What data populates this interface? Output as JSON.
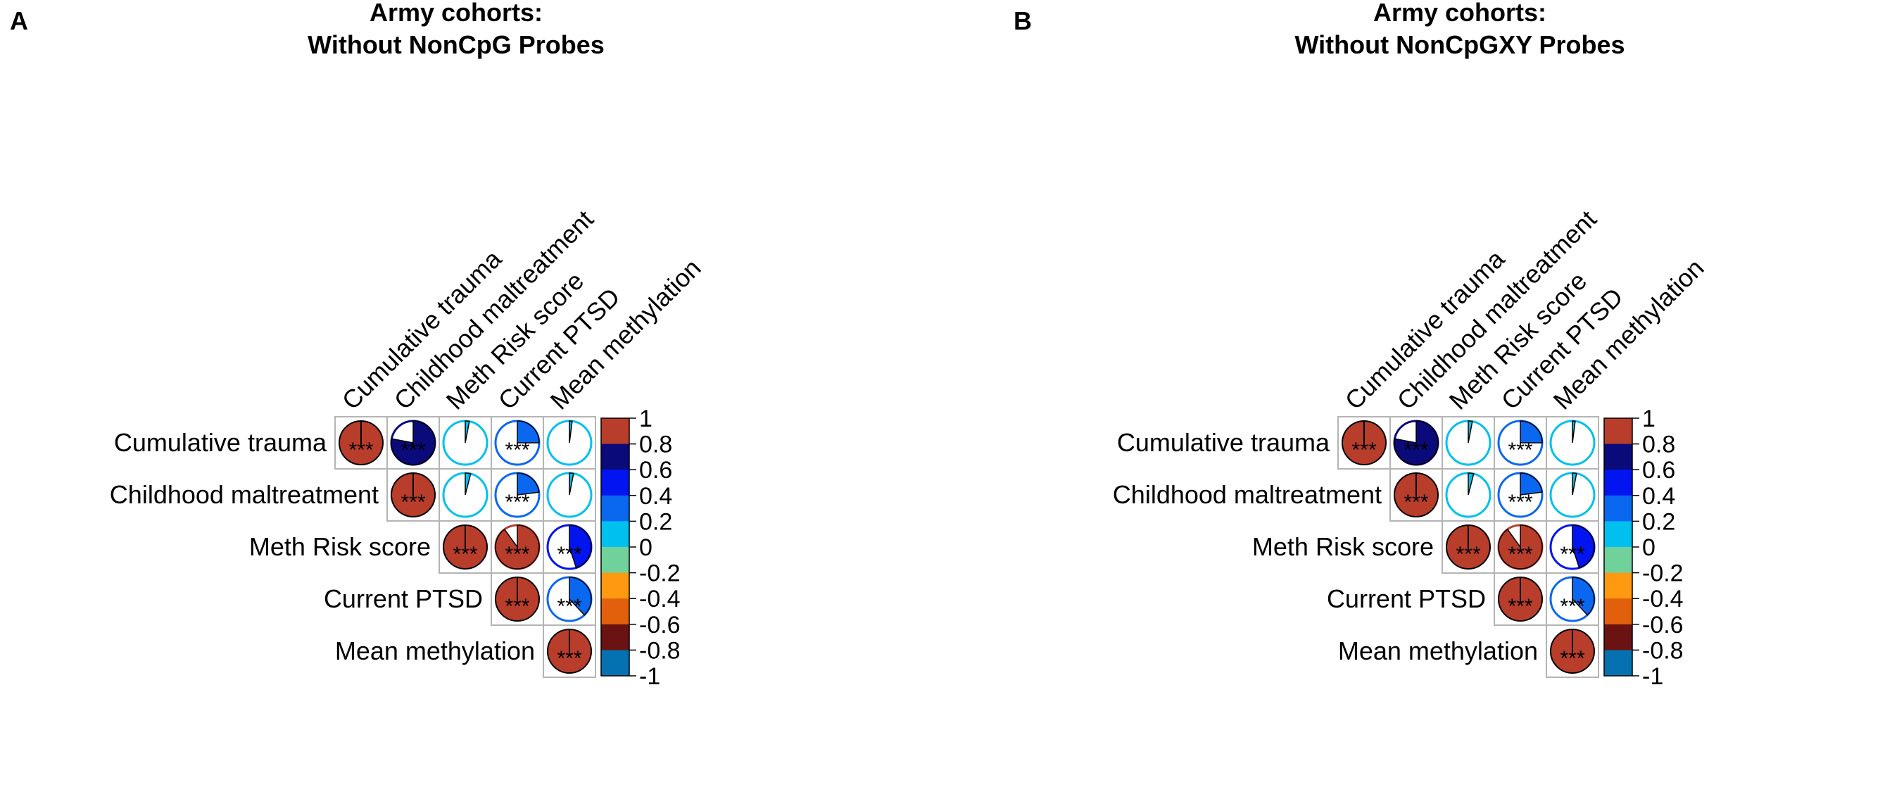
{
  "colors": {
    "palette": [
      "#0571b0",
      "#6b1313",
      "#e2600c",
      "#ff9910",
      "#71d19b",
      "#00c0ef",
      "#0a68f0",
      "#0215f0",
      "#0a0a7a",
      "#b93d2b"
    ],
    "grid": "#b4b4b4",
    "text": "#000000",
    "pie_outline": "#000000"
  },
  "chart_data": [
    {
      "type": "heatmap",
      "panel_letter": "A",
      "title_lines": [
        "Army cohorts:",
        "Without NonCpG Probes"
      ],
      "variables": [
        "Cumulative trauma",
        "Childhood maltreatment",
        "Meth Risk score",
        "Current PTSD",
        "Mean methylation"
      ],
      "layout": "upper-triangle",
      "glyph": "pie",
      "correlation": [
        [
          1.0,
          0.78,
          0.03,
          0.25,
          0.02
        ],
        [
          null,
          1.0,
          0.04,
          0.23,
          0.03
        ],
        [
          null,
          null,
          1.0,
          0.9,
          0.45
        ],
        [
          null,
          null,
          null,
          1.0,
          0.38
        ],
        [
          null,
          null,
          null,
          null,
          1.0
        ]
      ],
      "significance": [
        [
          "***",
          "***",
          "",
          "***",
          ""
        ],
        [
          null,
          "***",
          "",
          "***",
          ""
        ],
        [
          null,
          null,
          "***",
          "***",
          "***"
        ],
        [
          null,
          null,
          null,
          "***",
          "***"
        ],
        [
          null,
          null,
          null,
          null,
          "***"
        ]
      ],
      "colorbar": {
        "range": [
          -1,
          1
        ],
        "ticks": [
          "1",
          "0.8",
          "0.6",
          "0.4",
          "0.2",
          "0",
          "-0.2",
          "-0.4",
          "-0.6",
          "-0.8",
          "-1"
        ]
      }
    },
    {
      "type": "heatmap",
      "panel_letter": "B",
      "title_lines": [
        "Army cohorts:",
        "Without NonCpGXY Probes"
      ],
      "variables": [
        "Cumulative trauma",
        "Childhood maltreatment",
        "Meth Risk score",
        "Current PTSD",
        "Mean methylation"
      ],
      "layout": "upper-triangle",
      "glyph": "pie",
      "correlation": [
        [
          1.0,
          0.78,
          0.03,
          0.25,
          0.02
        ],
        [
          null,
          1.0,
          0.04,
          0.23,
          0.03
        ],
        [
          null,
          null,
          1.0,
          0.9,
          0.45
        ],
        [
          null,
          null,
          null,
          1.0,
          0.38
        ],
        [
          null,
          null,
          null,
          null,
          1.0
        ]
      ],
      "significance": [
        [
          "***",
          "***",
          "",
          "***",
          ""
        ],
        [
          null,
          "***",
          "",
          "***",
          ""
        ],
        [
          null,
          null,
          "***",
          "***",
          "***"
        ],
        [
          null,
          null,
          null,
          "***",
          "***"
        ],
        [
          null,
          null,
          null,
          null,
          "***"
        ]
      ],
      "colorbar": {
        "range": [
          -1,
          1
        ],
        "ticks": [
          "1",
          "0.8",
          "0.6",
          "0.4",
          "0.2",
          "0",
          "-0.2",
          "-0.4",
          "-0.6",
          "-0.8",
          "-1"
        ]
      }
    }
  ]
}
